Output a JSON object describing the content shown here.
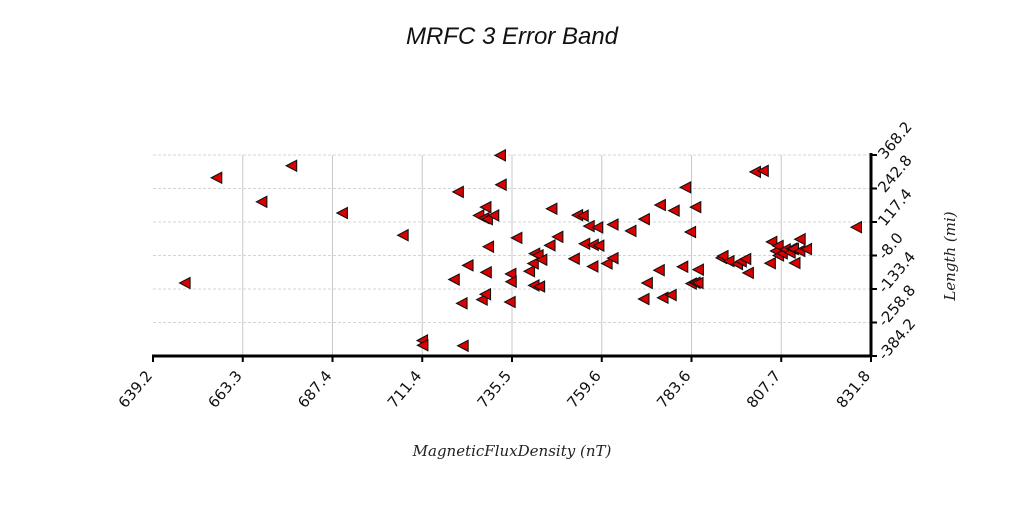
{
  "chart_data": {
    "type": "scatter",
    "title": "MRFC 3 Error Band",
    "xlabel": "MagneticFluxDensity (nT)",
    "ylabel": "Length (mi)",
    "xlim": [
      639.2,
      831.8
    ],
    "ylim": [
      -384.2,
      368.2
    ],
    "x_ticks": [
      "639.2",
      "663.3",
      "687.4",
      "711.4",
      "735.5",
      "759.6",
      "783.6",
      "807.7",
      "831.8"
    ],
    "y_ticks": [
      "-384.2",
      "-258.8",
      "-133.4",
      "-8.0",
      "117.4",
      "242.8",
      "368.2"
    ],
    "grid": true,
    "y_axis_side": "right",
    "marker": "triangle-left",
    "marker_color": "#dd0000",
    "points": [
      [
        647.8,
        -111
      ],
      [
        656.3,
        283
      ],
      [
        668.4,
        193
      ],
      [
        676.4,
        328
      ],
      [
        690.0,
        151
      ],
      [
        706.3,
        68
      ],
      [
        711.5,
        -326
      ],
      [
        711.6,
        -344
      ],
      [
        720.0,
        -98
      ],
      [
        721.1,
        230
      ],
      [
        722.1,
        -187
      ],
      [
        722.4,
        -346
      ],
      [
        723.7,
        -45
      ],
      [
        726.6,
        142
      ],
      [
        727.5,
        -173
      ],
      [
        728.0,
        132
      ],
      [
        728.4,
        -153
      ],
      [
        728.5,
        173
      ],
      [
        728.6,
        -71
      ],
      [
        728.9,
        128
      ],
      [
        729.2,
        25
      ],
      [
        730.6,
        142
      ],
      [
        732.4,
        367
      ],
      [
        732.6,
        257
      ],
      [
        735.0,
        -182
      ],
      [
        735.2,
        -77
      ],
      [
        735.3,
        -106
      ],
      [
        736.8,
        58
      ],
      [
        740.2,
        -67
      ],
      [
        741.2,
        -38
      ],
      [
        741.4,
        -120
      ],
      [
        741.6,
        -1
      ],
      [
        742.5,
        -7
      ],
      [
        742.9,
        -124
      ],
      [
        743.5,
        -24
      ],
      [
        745.7,
        30
      ],
      [
        746.2,
        167
      ],
      [
        747.8,
        62
      ],
      [
        752.2,
        -20
      ],
      [
        753.1,
        143
      ],
      [
        754.6,
        141
      ],
      [
        755.0,
        36
      ],
      [
        756.2,
        102
      ],
      [
        757.2,
        -49
      ],
      [
        757.3,
        32
      ],
      [
        758.5,
        97
      ],
      [
        758.8,
        29
      ],
      [
        761.0,
        -38
      ],
      [
        762.6,
        -18
      ],
      [
        762.6,
        108
      ],
      [
        767.4,
        84
      ],
      [
        770.9,
        -171
      ],
      [
        771.0,
        128
      ],
      [
        771.8,
        -111
      ],
      [
        775.0,
        -63
      ],
      [
        775.3,
        181
      ],
      [
        776.0,
        -166
      ],
      [
        778.2,
        -156
      ],
      [
        779.0,
        160
      ],
      [
        781.3,
        -50
      ],
      [
        782.1,
        247
      ],
      [
        783.4,
        80
      ],
      [
        783.6,
        -113
      ],
      [
        784.6,
        -110
      ],
      [
        784.8,
        173
      ],
      [
        785.4,
        -111
      ],
      [
        785.5,
        -61
      ],
      [
        791.7,
        -17
      ],
      [
        792.1,
        -10
      ],
      [
        793.7,
        -29
      ],
      [
        796.0,
        -40
      ],
      [
        797.0,
        -30
      ],
      [
        798.2,
        -21
      ],
      [
        798.9,
        -73
      ],
      [
        800.8,
        305
      ],
      [
        802.9,
        309
      ],
      [
        804.8,
        -37
      ],
      [
        805.2,
        43
      ],
      [
        806.3,
        9
      ],
      [
        806.9,
        28
      ],
      [
        807.0,
        -8
      ],
      [
        808.0,
        0
      ],
      [
        808.8,
        15
      ],
      [
        810.1,
        3
      ],
      [
        810.6,
        18
      ],
      [
        811.0,
        17
      ],
      [
        811.4,
        -36
      ],
      [
        812.7,
        9
      ],
      [
        812.8,
        53
      ],
      [
        814.5,
        16
      ],
      [
        827.9,
        98
      ]
    ]
  }
}
